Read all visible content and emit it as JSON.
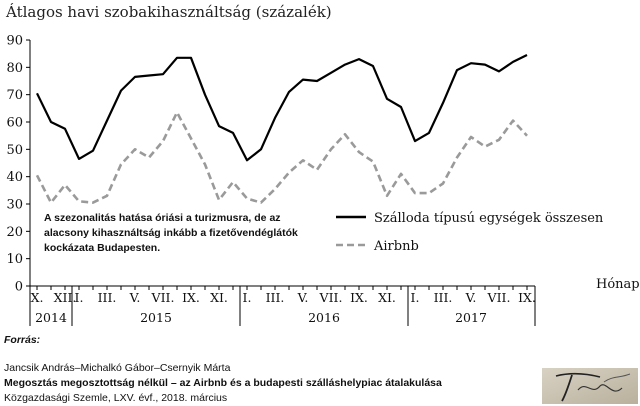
{
  "chart_data": {
    "type": "line",
    "title": "Átlagos havi szobakihasználtság (százalék)",
    "xlabel": "Hónap",
    "ylabel": "",
    "ylim": [
      0,
      90
    ],
    "yticks": [
      0,
      10,
      20,
      30,
      40,
      50,
      60,
      70,
      80,
      90
    ],
    "x_month_labels": [
      {
        "index": 0,
        "label": "X."
      },
      {
        "index": 2,
        "label": "XII."
      },
      {
        "index": 3,
        "label": "I."
      },
      {
        "index": 5,
        "label": "III."
      },
      {
        "index": 7,
        "label": "V."
      },
      {
        "index": 9,
        "label": "VII."
      },
      {
        "index": 11,
        "label": "IX."
      },
      {
        "index": 13,
        "label": "XI."
      },
      {
        "index": 15,
        "label": "I."
      },
      {
        "index": 17,
        "label": "III."
      },
      {
        "index": 19,
        "label": "V."
      },
      {
        "index": 21,
        "label": "VII."
      },
      {
        "index": 23,
        "label": "IX."
      },
      {
        "index": 25,
        "label": "XI."
      },
      {
        "index": 27,
        "label": "I."
      },
      {
        "index": 29,
        "label": "III."
      },
      {
        "index": 31,
        "label": "V."
      },
      {
        "index": 33,
        "label": "VII."
      },
      {
        "index": 35,
        "label": "IX."
      }
    ],
    "years": [
      {
        "label": "2014",
        "start": 0,
        "end": 2
      },
      {
        "label": "2015",
        "start": 3,
        "end": 14
      },
      {
        "label": "2016",
        "start": 15,
        "end": 26
      },
      {
        "label": "2017",
        "start": 27,
        "end": 35
      }
    ],
    "series": [
      {
        "name": "Szálloda típusú egységek összesen",
        "style": "solid",
        "color": "#000000",
        "values": [
          70.5,
          60,
          57.5,
          46.5,
          49.5,
          60.5,
          71.5,
          76.5,
          77,
          77.5,
          83.5,
          83.5,
          70,
          58.5,
          56,
          46,
          50,
          61.5,
          71,
          75.5,
          75,
          78,
          81,
          83,
          80.5,
          68.5,
          65.5,
          53,
          56,
          67,
          79,
          81.5,
          81,
          78.5,
          82,
          84.5
        ]
      },
      {
        "name": "Airbnb",
        "style": "dashed",
        "color": "#9a9a9a",
        "values": [
          40.5,
          30.5,
          37,
          31,
          30.5,
          33,
          44.5,
          50,
          47,
          53,
          63.5,
          54,
          44.5,
          31.5,
          38,
          32,
          30.5,
          35.5,
          41.5,
          46,
          42.5,
          50,
          55.5,
          49,
          45.5,
          33,
          41,
          34,
          34,
          37.5,
          47,
          54.5,
          51,
          53.5,
          60.5,
          55
        ]
      }
    ],
    "annotation": "A szezonalitás hatása óriási a turizmusra, de az alacsony kihasználtság inkább a fizetővendéglátók kockázata Budapesten.",
    "legend_position": "right-center"
  },
  "source": {
    "label": "Forrás:",
    "authors": "Jancsik András–Michalkó Gábor–Csernyik Márta",
    "title": "Megosztás megosztottság nélkül – az Airbnb és a budapesti szálláshelypiac átalakulása",
    "journal": "Közgazdasági Szemle, LXV. évf., 2018. március"
  },
  "colors": {
    "hotel": "#000000",
    "airbnb": "#9a9a9a",
    "axis": "#000000"
  }
}
